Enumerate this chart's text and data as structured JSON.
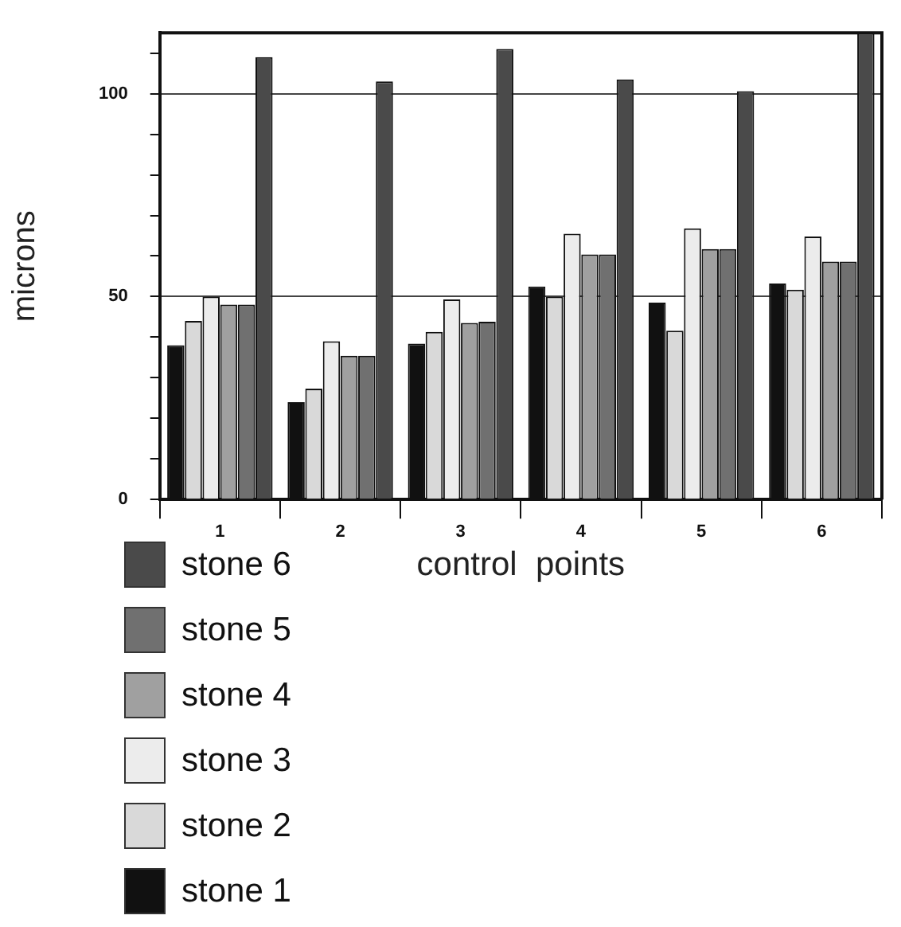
{
  "chart_data": {
    "type": "bar",
    "xlabel": "control  points",
    "ylabel": "microns",
    "categories": [
      "1",
      "2",
      "3",
      "4",
      "5",
      "6"
    ],
    "series": [
      {
        "name": "stone 1",
        "color": "#111111",
        "values": [
          38,
          24,
          38.4,
          52.5,
          48.5,
          53.2
        ]
      },
      {
        "name": "stone 2",
        "color": "#d9d9d9",
        "values": [
          44,
          27.3,
          41.3,
          50,
          41.6,
          51.7
        ]
      },
      {
        "name": "stone 3",
        "color": "#ececec",
        "values": [
          50,
          39,
          49.3,
          65.5,
          66.8,
          64.8
        ]
      },
      {
        "name": "stone 4",
        "color": "#a0a0a0",
        "values": [
          48,
          35.4,
          43.5,
          60.4,
          61.7,
          58.6
        ]
      },
      {
        "name": "stone 5",
        "color": "#707070",
        "values": [
          48,
          35.4,
          43.8,
          60.4,
          61.7,
          58.6
        ]
      },
      {
        "name": "stone 6",
        "color": "#4a4a4a",
        "values": [
          109,
          103,
          111,
          103.5,
          100.6,
          115
        ]
      }
    ],
    "ylim": [
      0,
      115
    ],
    "yticks": [
      0,
      {
        "value": 10,
        "label": null
      },
      {
        "value": 20,
        "label": null
      },
      {
        "value": 30,
        "label": null
      },
      {
        "value": 40,
        "label": null
      },
      50,
      {
        "value": 60,
        "label": null
      },
      {
        "value": 70,
        "label": null
      },
      {
        "value": 80,
        "label": null
      },
      {
        "value": 90,
        "label": null
      },
      100,
      {
        "value": 110,
        "label": null
      }
    ],
    "grid": "y",
    "legend": "bottom left"
  }
}
